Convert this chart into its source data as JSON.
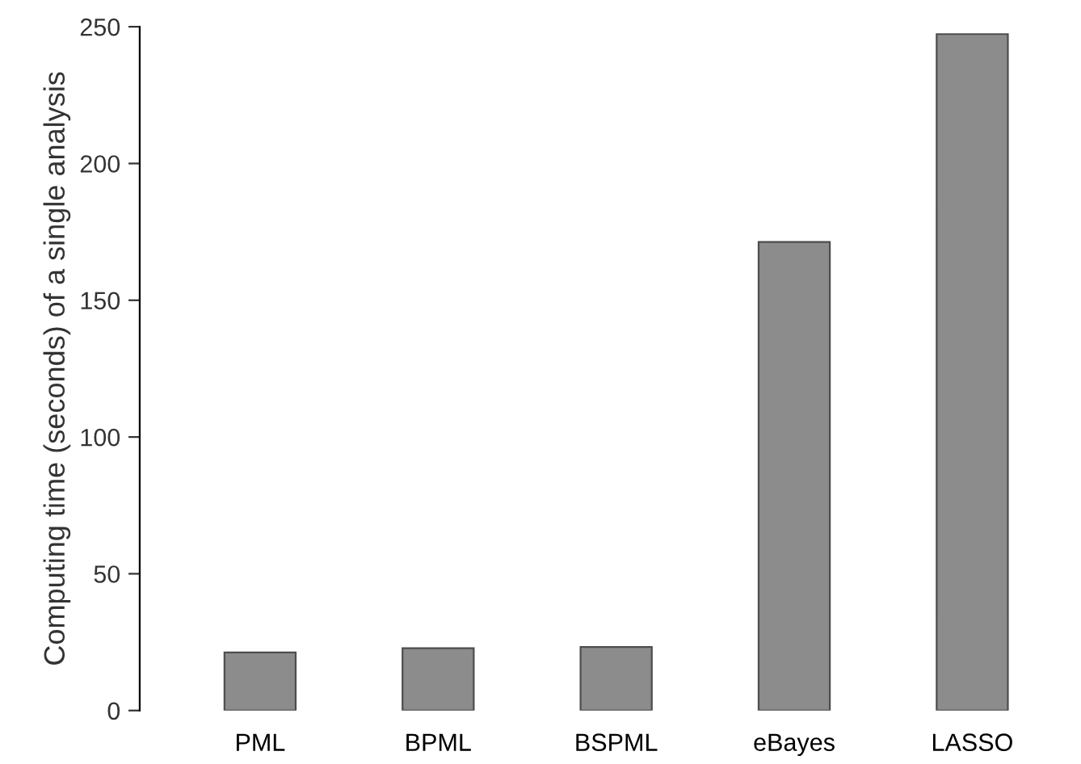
{
  "chart_data": {
    "type": "bar",
    "ylabel": "Computing time (seconds) of a single analysis",
    "categories": [
      "PML",
      "BPML",
      "BSPML",
      "eBayes",
      "LASSO"
    ],
    "values": [
      21.2,
      22.8,
      23.2,
      171.3,
      247.3
    ],
    "color": "#8c8c8c",
    "ylim": [
      0,
      250
    ],
    "yticks": [
      0,
      50,
      100,
      150,
      200,
      250
    ],
    "grid": false,
    "legend": false
  }
}
